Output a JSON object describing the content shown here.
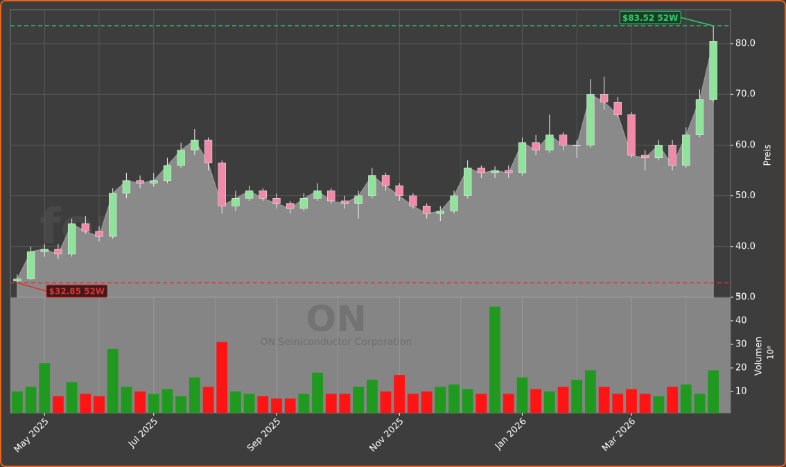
{
  "chart_data": {
    "type": "candlestick",
    "watermark": "forexsignale.trade",
    "symbol": "ON",
    "company": "ON Semiconductor Corporation",
    "ylabel": "Preis",
    "volume_label": "Volumen",
    "volume_offset": "10⁶",
    "categories": [
      null,
      null,
      "May 2025",
      null,
      null,
      null,
      null,
      null,
      null,
      null,
      "Jul 2025",
      null,
      null,
      null,
      null,
      null,
      null,
      null,
      null,
      "Sep 2025",
      null,
      null,
      null,
      null,
      null,
      null,
      null,
      null,
      "Nov 2025",
      null,
      null,
      null,
      null,
      null,
      null,
      null,
      null,
      "Jan 2026",
      null,
      null,
      null,
      null,
      null,
      null,
      null,
      "Mar 2026",
      null,
      null,
      null,
      null,
      null,
      null
    ],
    "open": [
      33.2,
      33.6,
      39,
      39.5,
      38.5,
      44.5,
      43,
      42,
      50.5,
      53,
      52.5,
      53,
      56,
      59,
      61,
      56.5,
      48,
      49.5,
      51,
      49.5,
      48.5,
      47.5,
      49.5,
      51,
      49,
      48.5,
      50,
      54,
      52,
      50,
      48,
      46.5,
      47,
      50,
      55.5,
      54.5,
      55,
      54.5,
      60.5,
      59,
      62,
      60,
      60,
      70,
      68.5,
      66,
      58,
      57.5,
      60,
      56,
      62,
      69
    ],
    "high": [
      34.5,
      40,
      40.5,
      40.5,
      45.5,
      46,
      44,
      51.5,
      54.5,
      54,
      54.5,
      57.5,
      60.5,
      63.2,
      61.5,
      57,
      51,
      52,
      51.5,
      50.5,
      49,
      50.5,
      52.5,
      51.5,
      50,
      51,
      55.5,
      54.5,
      52.5,
      50.5,
      48.5,
      48,
      51,
      57,
      56,
      55.8,
      56,
      61.5,
      62,
      66,
      62.5,
      61,
      73,
      73.5,
      69.5,
      66.5,
      59,
      61,
      61,
      63.5,
      71,
      83.52
    ],
    "low": [
      32.85,
      33.4,
      38,
      37.5,
      38,
      42.5,
      41,
      41.5,
      49.5,
      51.5,
      51.8,
      52.5,
      55.5,
      58,
      55,
      46.5,
      47,
      49,
      49,
      47.5,
      46.5,
      47,
      49,
      48.5,
      47.5,
      45.5,
      49.5,
      51,
      49,
      47.5,
      45.5,
      45,
      46.5,
      49.5,
      53.5,
      53.5,
      53.5,
      54,
      58,
      58.5,
      59,
      57.5,
      59.5,
      67,
      65.5,
      57.5,
      55,
      57,
      55,
      55.5,
      61.5,
      68.5
    ],
    "close": [
      33.6,
      39,
      39.5,
      38.5,
      44.5,
      43,
      42,
      50.5,
      53,
      52.5,
      53,
      56,
      59,
      61,
      56.5,
      48,
      49.5,
      51,
      49.5,
      48.5,
      47.5,
      49.5,
      51,
      49,
      48.5,
      50,
      54,
      52,
      50,
      48,
      46.5,
      47,
      50,
      55.5,
      54.5,
      55,
      54.5,
      60.5,
      59,
      62,
      60,
      60,
      70,
      68.5,
      66,
      58,
      57.5,
      60,
      56,
      62,
      69,
      80.5
    ],
    "volume": [
      10,
      12,
      22,
      8,
      14,
      9,
      8,
      28,
      12,
      10,
      9,
      11,
      8,
      16,
      12,
      31,
      10,
      9,
      8,
      7,
      7,
      9,
      18,
      9,
      9,
      12,
      15,
      10,
      17,
      9,
      10,
      12,
      13,
      11,
      9,
      46,
      9,
      16,
      11,
      10,
      12,
      15,
      19,
      12,
      9,
      11,
      9,
      8,
      12,
      13,
      9,
      19
    ],
    "up_color": "#8fe39a",
    "down_color": "#f08aa8",
    "volume_up_color": "#1f9a1f",
    "volume_down_color": "#ff1414",
    "ylim": [
      30,
      86.7
    ],
    "yticks": [
      {
        "value": 30,
        "label": "30.0"
      },
      {
        "value": 40,
        "label": "40.0"
      },
      {
        "value": 50,
        "label": "50.0"
      },
      {
        "value": 60,
        "label": "60.0"
      },
      {
        "value": 70,
        "label": "70.0"
      },
      {
        "value": 80,
        "label": "80.0"
      }
    ],
    "volume_ylim": [
      0.9,
      50
    ],
    "volume_yticks": [
      10,
      20,
      30,
      40,
      50
    ],
    "grid": true,
    "annotations": [
      {
        "text": "$83.52 52W",
        "value": 83.52,
        "color": "#2ecc71"
      },
      {
        "text": "$32.85 52W",
        "value": 32.85,
        "color": "#e03030"
      }
    ]
  }
}
